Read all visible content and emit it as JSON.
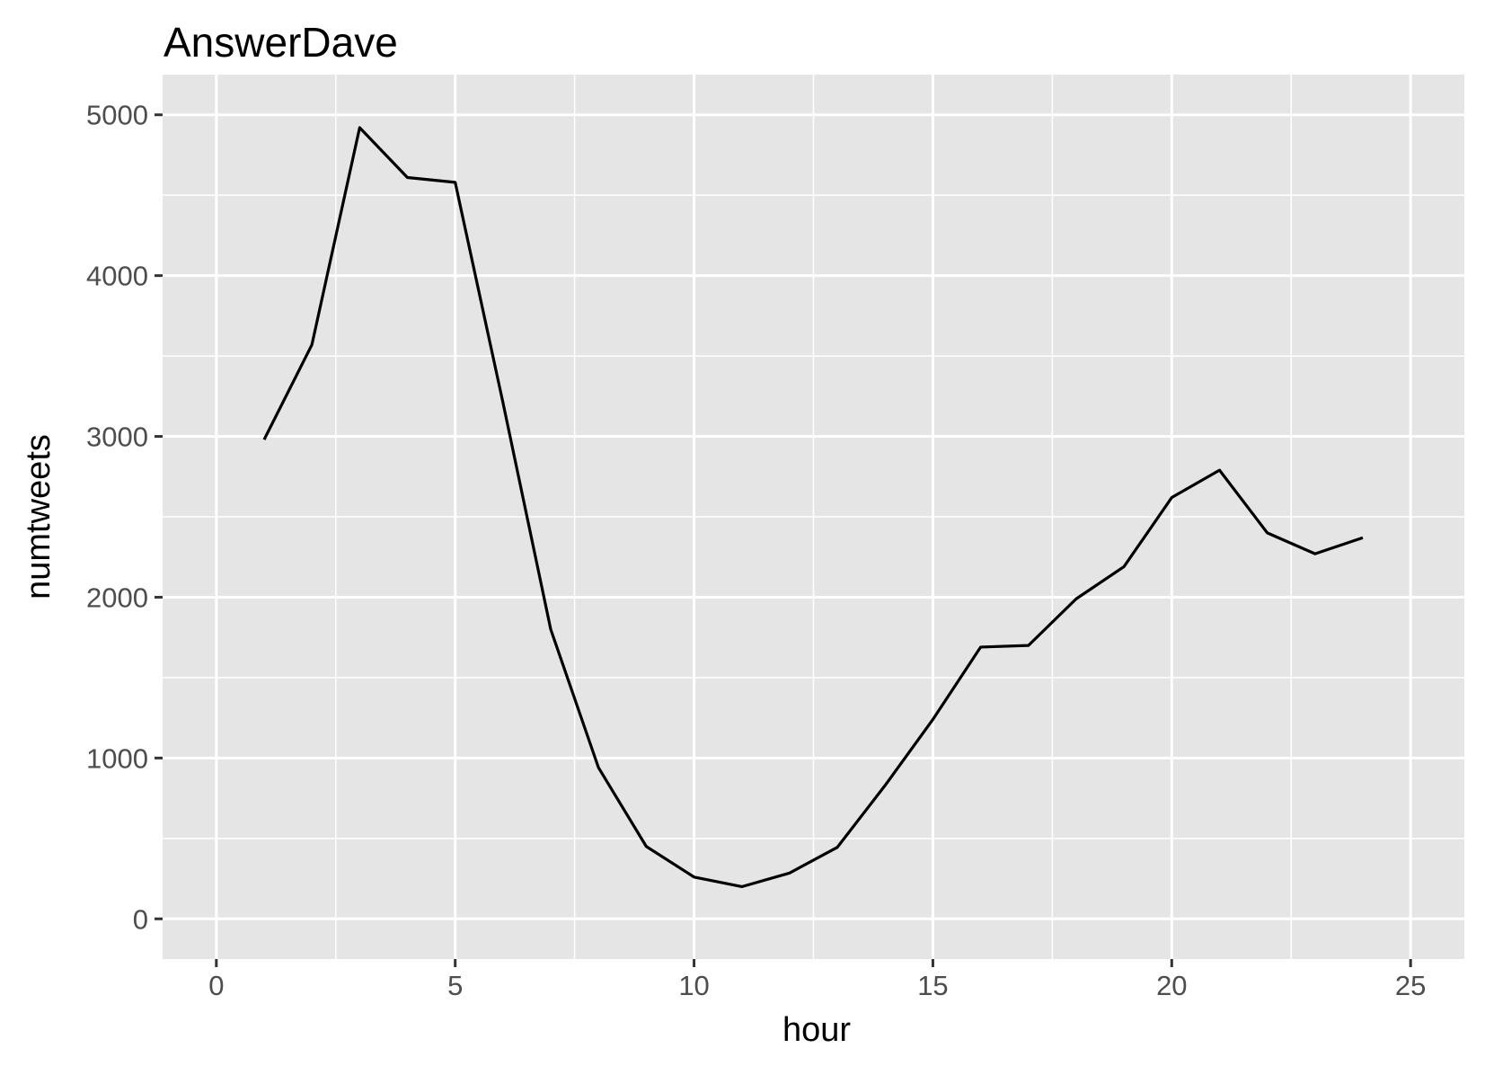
{
  "chart_data": {
    "type": "line",
    "title": "AnswerDave",
    "xlabel": "hour",
    "ylabel": "numtweets",
    "xlim": [
      0,
      25
    ],
    "ylim": [
      0,
      5000
    ],
    "x_ticks": [
      0,
      5,
      10,
      15,
      20,
      25
    ],
    "y_ticks": [
      0,
      1000,
      2000,
      3000,
      4000,
      5000
    ],
    "grid": true,
    "legend": "none",
    "colors": {
      "panel_background": "#e5e5e5",
      "grid_line": "#ffffff",
      "series_line": "#000000",
      "tick_label": "#4d4d4d",
      "tick_mark": "#333333"
    },
    "series": [
      {
        "x": [
          1,
          2,
          3,
          4,
          5,
          6,
          7,
          8,
          9,
          10,
          11,
          12,
          13,
          14,
          15,
          16,
          17,
          18,
          19,
          20,
          21,
          22,
          23,
          24
        ],
        "y": [
          2980,
          3570,
          4920,
          4610,
          4580,
          3210,
          1800,
          940,
          450,
          260,
          200,
          285,
          445,
          830,
          1240,
          1690,
          1700,
          1990,
          2190,
          2620,
          2790,
          2400,
          2270,
          2370
        ]
      }
    ]
  }
}
